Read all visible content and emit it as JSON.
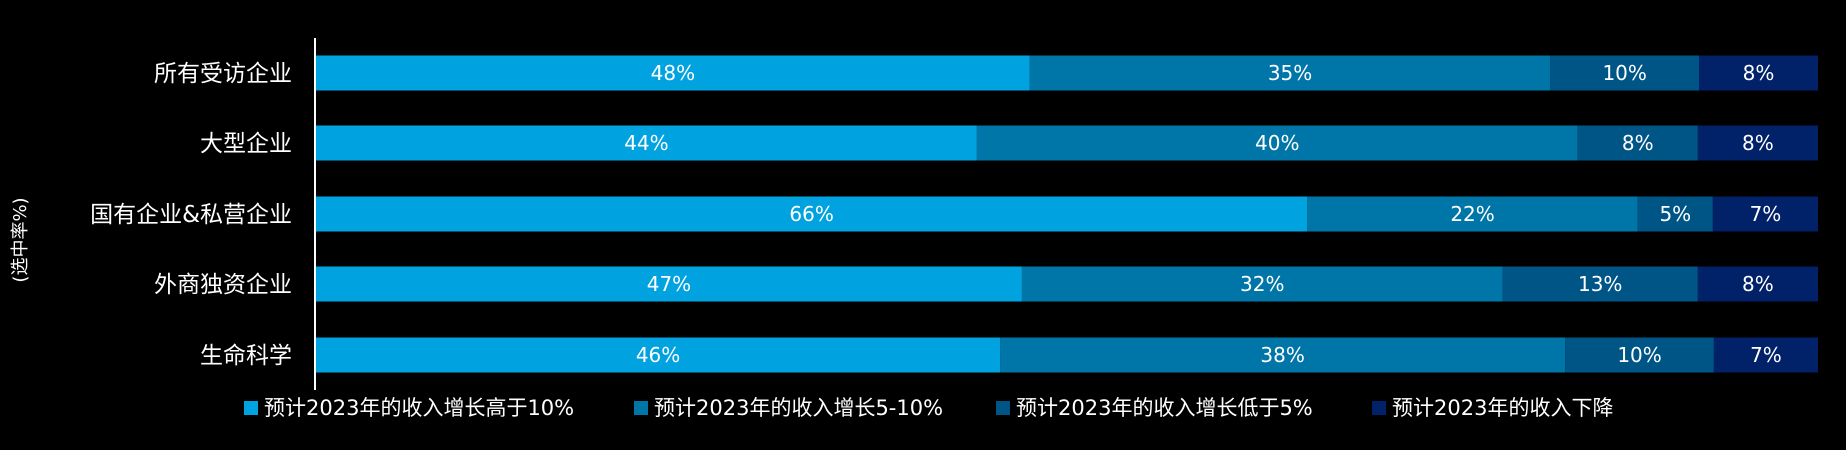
{
  "chart_data": {
    "type": "bar",
    "orientation": "horizontal",
    "stacked": true,
    "ylabel": "(选中率%)",
    "categories": [
      "所有受访企业",
      "大型企业",
      "国有企业&私营企业",
      "外商独资企业",
      "生命科学"
    ],
    "series": [
      {
        "name": "预计2023年的收入增长高于10%",
        "color": "#00A3E0",
        "values": [
          48,
          44,
          66,
          47,
          46
        ]
      },
      {
        "name": "预计2023年的收入增长5-10%",
        "color": "#0076A8",
        "values": [
          35,
          40,
          22,
          32,
          38
        ]
      },
      {
        "name": "预计2023年的收入增长低于5%",
        "color": "#005587",
        "values": [
          10,
          8,
          5,
          13,
          10
        ]
      },
      {
        "name": "预计2023年的收入下降",
        "color": "#012169",
        "values": [
          8,
          8,
          7,
          8,
          7
        ]
      }
    ],
    "value_suffix": "%",
    "legend_position": "bottom",
    "grid": false
  }
}
